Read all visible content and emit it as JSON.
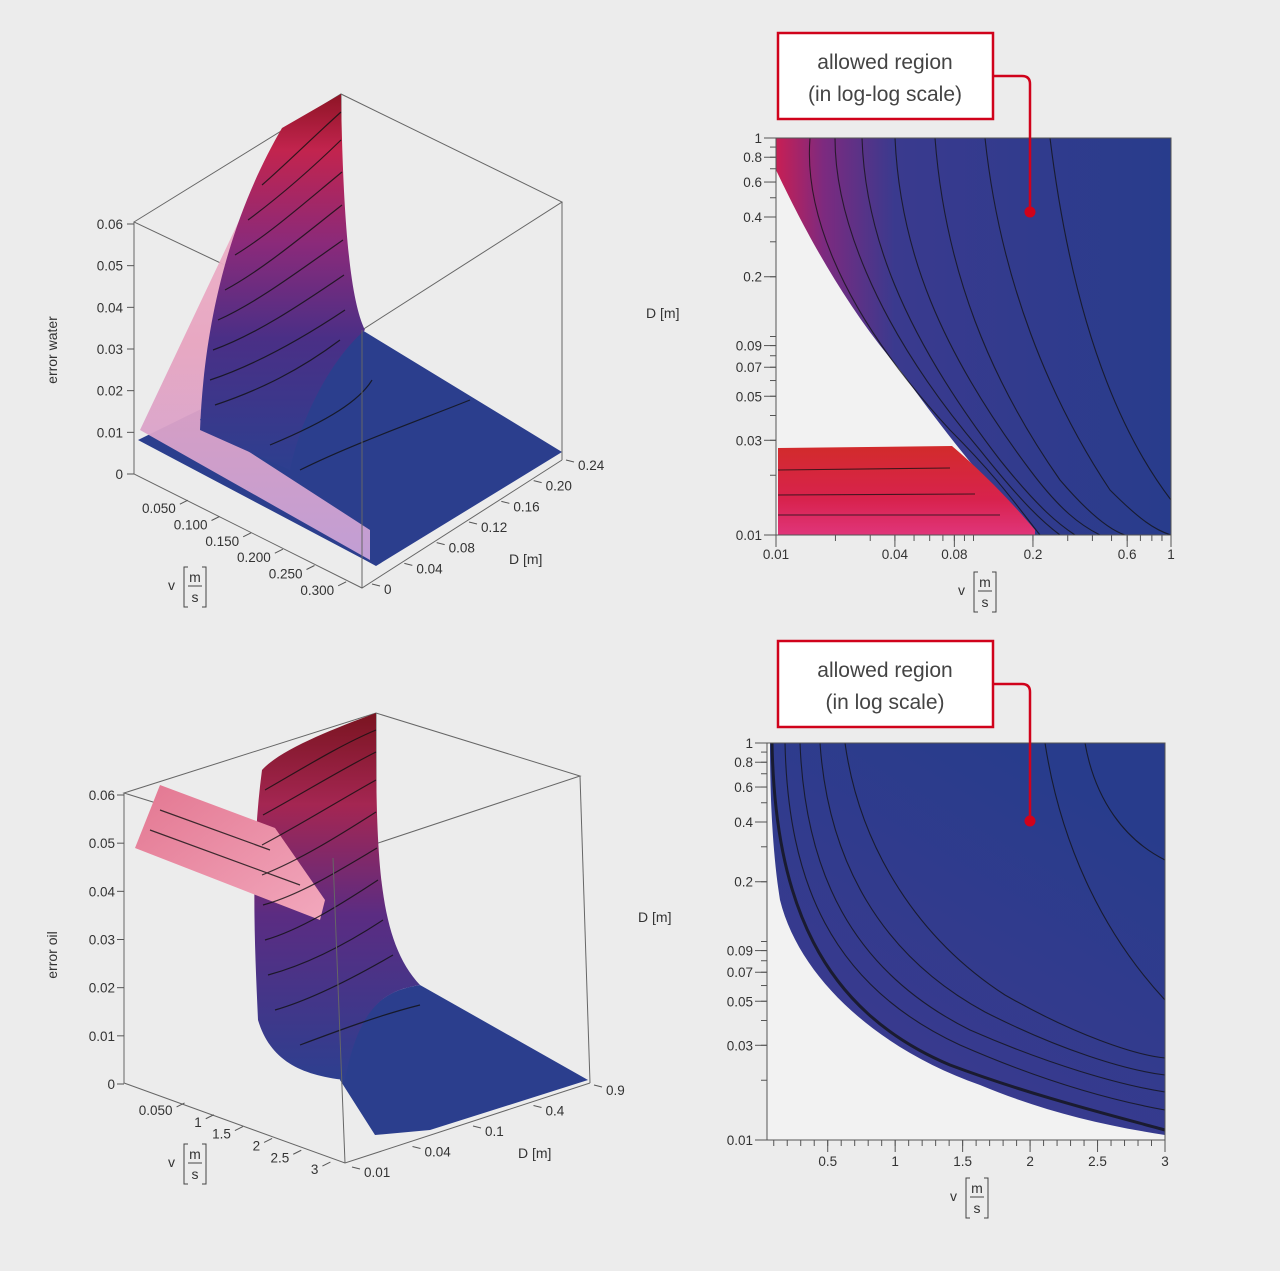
{
  "accent": "#d0021b",
  "colors": {
    "surface_low": "#283c8c",
    "surface_mid": "#6a2a7e",
    "surface_high": "#d4244a",
    "surface_pale": "#e7a4c0",
    "box_line": "#555555",
    "background": "#ececec"
  },
  "chart_data": [
    {
      "id": "water-3d",
      "type": "surface",
      "zlabel": "error water",
      "xlabel": "v",
      "x_unit_num": "m",
      "x_unit_den": "s",
      "ylabel": "D",
      "y_unit": "[m]",
      "z_ticks": [
        "0",
        "0.01",
        "0.02",
        "0.03",
        "0.04",
        "0.05",
        "0.06"
      ],
      "x_ticks": [
        "0.050",
        "0.100",
        "0.150",
        "0.200",
        "0.250",
        "0.300"
      ],
      "y_ticks": [
        "0",
        "0.04",
        "0.08",
        "0.12",
        "0.16",
        "0.20",
        "0.24"
      ],
      "xlim": [
        0.03,
        0.3
      ],
      "ylim": [
        0,
        0.27
      ],
      "zlim": [
        0,
        0.06
      ]
    },
    {
      "id": "water-contour",
      "type": "heatmap",
      "scale": "log-log",
      "xlabel": "v",
      "x_unit_num": "m",
      "x_unit_den": "s",
      "ylabel": "D",
      "y_unit": "[m]",
      "x_ticks": [
        "0.01",
        "0.04",
        "0.08",
        "0.2",
        "0.6",
        "1"
      ],
      "y_ticks": [
        "0.01",
        "0.03",
        "0.05",
        "0.07",
        "0.09",
        "0.2",
        "0.4",
        "0.6",
        "0.8",
        "1"
      ],
      "xlim": [
        0.01,
        1
      ],
      "ylim": [
        0.01,
        1
      ],
      "callout": [
        "allowed region",
        "(in log-log scale)"
      ]
    },
    {
      "id": "oil-3d",
      "type": "surface",
      "zlabel": "error oil",
      "xlabel": "v",
      "x_unit_num": "m",
      "x_unit_den": "s",
      "ylabel": "D",
      "y_unit": "[m]",
      "z_ticks": [
        "0",
        "0.01",
        "0.02",
        "0.03",
        "0.04",
        "0.05",
        "0.06"
      ],
      "x_ticks": [
        "0.050",
        "1",
        "1.5",
        "2",
        "2.5",
        "3"
      ],
      "y_ticks": [
        "0.01",
        "0.04",
        "0.1",
        "0.4",
        "0.9"
      ],
      "xlim": [
        0.05,
        3
      ],
      "ylim": [
        0.01,
        0.9
      ],
      "zlim": [
        0,
        0.06
      ]
    },
    {
      "id": "oil-contour",
      "type": "heatmap",
      "scale": "log",
      "xlabel": "v",
      "x_unit_num": "m",
      "x_unit_den": "s",
      "ylabel": "D",
      "y_unit": "[m]",
      "x_ticks": [
        "0.5",
        "1",
        "1.5",
        "2",
        "2.5",
        "3"
      ],
      "y_ticks": [
        "0.01",
        "0.03",
        "0.05",
        "0.07",
        "0.09",
        "0.2",
        "0.4",
        "0.6",
        "0.8",
        "1"
      ],
      "xlim": [
        0.05,
        3
      ],
      "ylim": [
        0.01,
        1
      ],
      "callout": [
        "allowed region",
        "(in log scale)"
      ]
    }
  ]
}
